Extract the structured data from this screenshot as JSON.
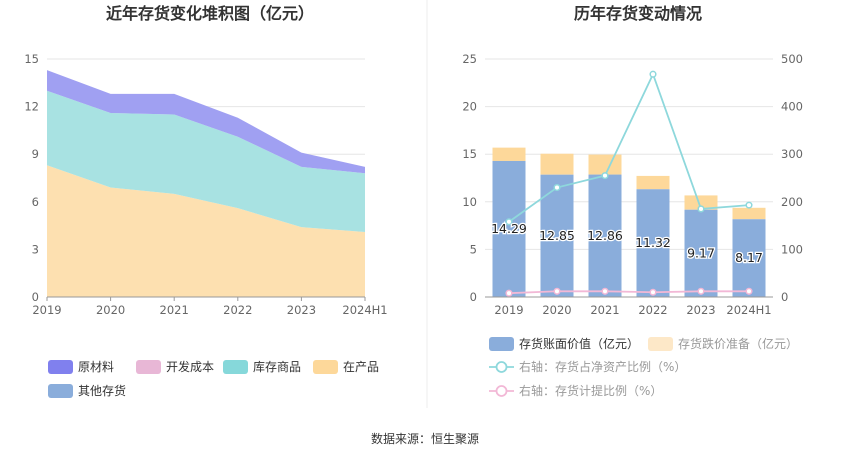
{
  "chart_data": [
    {
      "type": "area",
      "title": "近年存货变化堆积图（亿元）",
      "categories": [
        "2019",
        "2020",
        "2021",
        "2022",
        "2023",
        "2024H1"
      ],
      "ylim": [
        0,
        15
      ],
      "yticks": [
        "0",
        "3",
        "6",
        "9",
        "12",
        "15"
      ],
      "stacked": true,
      "series": [
        {
          "name": "在产品",
          "color": "#fde0b0",
          "values": [
            8.3,
            6.9,
            6.5,
            5.6,
            4.4,
            4.1
          ]
        },
        {
          "name": "库存商品",
          "color": "#a8e2e2",
          "values": [
            4.7,
            4.7,
            5.0,
            4.5,
            3.8,
            3.7
          ]
        },
        {
          "name": "原材料",
          "color": "#a0a0f2",
          "values": [
            1.3,
            1.2,
            1.3,
            1.2,
            0.9,
            0.4
          ]
        }
      ],
      "legend": [
        {
          "name": "原材料",
          "color": "#8080ee"
        },
        {
          "name": "开发成本",
          "color": "#e8b7d6"
        },
        {
          "name": "库存商品",
          "color": "#86d8da"
        },
        {
          "name": "在产品",
          "color": "#fdd89a"
        },
        {
          "name": "其他存货",
          "color": "#8aaddb"
        }
      ]
    },
    {
      "type": "bar",
      "title": "历年存货变动情况",
      "categories": [
        "2019",
        "2020",
        "2021",
        "2022",
        "2023",
        "2024H1"
      ],
      "ylim": [
        0,
        25
      ],
      "yticks": [
        "0",
        "5",
        "10",
        "15",
        "20",
        "25"
      ],
      "y2lim": [
        0,
        500
      ],
      "y2ticks": [
        "0",
        "100",
        "200",
        "300",
        "400",
        "500"
      ],
      "series": [
        {
          "name": "存货账面价值（亿元）",
          "kind": "bar",
          "color": "#8aaddb",
          "values": [
            14.29,
            12.85,
            12.86,
            11.32,
            9.17,
            8.17
          ],
          "labels": [
            "14.29",
            "12.85",
            "12.86",
            "11.32",
            "9.17",
            "8.17"
          ]
        },
        {
          "name": "存货跌价准备（亿元）",
          "kind": "bar-stack",
          "color": "#fdd89a",
          "values": [
            1.4,
            2.2,
            2.1,
            1.4,
            1.5,
            1.2
          ]
        },
        {
          "name": "右轴：存货占净资产比例（%）",
          "kind": "line",
          "axis": "right",
          "color": "#8ed8dc",
          "values": [
            158,
            230,
            255,
            468,
            185,
            193
          ]
        },
        {
          "name": "右轴：存货计提比例（%）",
          "kind": "line",
          "axis": "right",
          "color": "#f2b8d6",
          "values": [
            8,
            12,
            12,
            10,
            12,
            12
          ]
        }
      ]
    }
  ],
  "footer": {
    "source": "数据来源：恒生聚源"
  }
}
